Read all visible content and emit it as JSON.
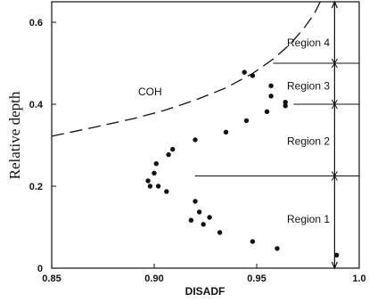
{
  "chart_data": {
    "type": "scatter",
    "xlabel": "DISADF",
    "ylabel": "Relative depth",
    "xlim": [
      0.85,
      1.0
    ],
    "ylim": [
      0,
      0.65
    ],
    "x_ticks": [
      "0.85",
      "0.90",
      "0.95",
      "1.0"
    ],
    "y_ticks": [
      "0",
      "0.2",
      "0.4",
      "0.6"
    ],
    "grid": false,
    "series": [
      {
        "points": [
          {
            "x": 0.989,
            "y": 0.032
          },
          {
            "x": 0.96,
            "y": 0.048
          },
          {
            "x": 0.948,
            "y": 0.065
          },
          {
            "x": 0.932,
            "y": 0.087
          },
          {
            "x": 0.924,
            "y": 0.107
          },
          {
            "x": 0.918,
            "y": 0.117
          },
          {
            "x": 0.927,
            "y": 0.124
          },
          {
            "x": 0.922,
            "y": 0.137
          },
          {
            "x": 0.92,
            "y": 0.163
          },
          {
            "x": 0.906,
            "y": 0.187
          },
          {
            "x": 0.898,
            "y": 0.2
          },
          {
            "x": 0.902,
            "y": 0.2
          },
          {
            "x": 0.897,
            "y": 0.213
          },
          {
            "x": 0.9,
            "y": 0.232
          },
          {
            "x": 0.901,
            "y": 0.255
          },
          {
            "x": 0.907,
            "y": 0.277
          },
          {
            "x": 0.909,
            "y": 0.29
          },
          {
            "x": 0.92,
            "y": 0.313
          },
          {
            "x": 0.935,
            "y": 0.332
          },
          {
            "x": 0.945,
            "y": 0.36
          },
          {
            "x": 0.955,
            "y": 0.382
          },
          {
            "x": 0.964,
            "y": 0.396
          },
          {
            "x": 0.964,
            "y": 0.405
          },
          {
            "x": 0.957,
            "y": 0.42
          },
          {
            "x": 0.957,
            "y": 0.445
          },
          {
            "x": 0.948,
            "y": 0.47
          },
          {
            "x": 0.944,
            "y": 0.478
          }
        ]
      }
    ],
    "coh_curve": {
      "label": "COH",
      "points": [
        {
          "x": 0.85,
          "y": 0.322
        },
        {
          "x": 0.87,
          "y": 0.343
        },
        {
          "x": 0.89,
          "y": 0.365
        },
        {
          "x": 0.905,
          "y": 0.385
        },
        {
          "x": 0.92,
          "y": 0.41
        },
        {
          "x": 0.935,
          "y": 0.44
        },
        {
          "x": 0.948,
          "y": 0.475
        },
        {
          "x": 0.958,
          "y": 0.51
        },
        {
          "x": 0.966,
          "y": 0.545
        },
        {
          "x": 0.973,
          "y": 0.585
        },
        {
          "x": 0.978,
          "y": 0.62
        },
        {
          "x": 0.981,
          "y": 0.65
        }
      ]
    },
    "regions": {
      "axis_x": 0.988,
      "labels": [
        "Region 1",
        "Region 2",
        "Region 3",
        "Region 4"
      ],
      "label_y": [
        0.12,
        0.31,
        0.445,
        0.55
      ],
      "boundaries": [
        {
          "y": 0.225,
          "x_from": 0.92
        },
        {
          "y": 0.4,
          "x_from": 0.968
        },
        {
          "y": 0.5,
          "x_from": 0.958
        }
      ]
    }
  }
}
